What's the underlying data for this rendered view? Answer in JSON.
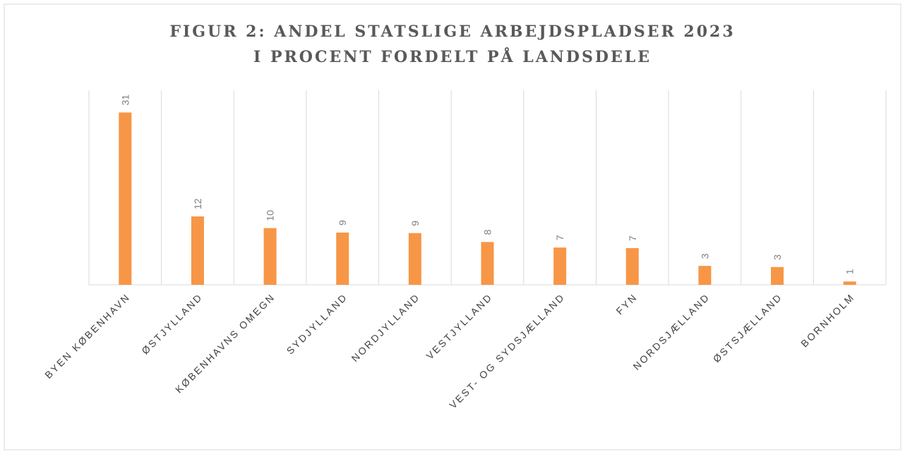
{
  "chart_data": {
    "type": "bar",
    "title": [
      "FIGUR 2: ANDEL STATSLIGE ARBEJDSPLADSER 2023",
      "I PROCENT FORDELT PÅ LANDSDELE"
    ],
    "categories": [
      "BYEN KØBENHAVN",
      "ØSTJYLLAND",
      "KØBENHAVNS OMEGN",
      "SYDJYLLAND",
      "NORDJYLLAND",
      "VESTJYLLAND",
      "VEST- OG SYDSJÆLLAND",
      "FYN",
      "NORDSJÆLLAND",
      "ØSTSJÆLLAND",
      "BORNHOLM"
    ],
    "values": [
      31,
      12.3,
      10.2,
      9.4,
      9.3,
      7.7,
      6.7,
      6.6,
      3.4,
      3.2,
      0.6
    ],
    "value_labels": [
      "31",
      "12",
      "10",
      "9",
      "9",
      "8",
      "7",
      "7",
      "3",
      "3",
      "1"
    ],
    "color": "#f79646",
    "ylim": [
      0,
      35
    ]
  }
}
